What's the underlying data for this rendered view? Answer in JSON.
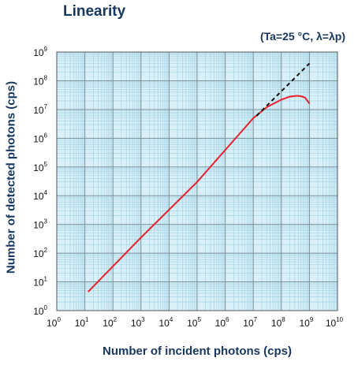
{
  "title": "Linearity",
  "subtitle": "(Ta=25 °C, λ=λp)",
  "chart_data": {
    "type": "line",
    "xlabel": "Number of incident photons (cps)",
    "ylabel": "Number of detected photons (cps)",
    "xscale": "log",
    "yscale": "log",
    "xlim": [
      1,
      10000000000
    ],
    "ylim": [
      1,
      1000000000
    ],
    "x_tick_exponents": [
      0,
      1,
      2,
      3,
      4,
      5,
      6,
      7,
      8,
      9,
      10
    ],
    "y_tick_exponents": [
      0,
      1,
      2,
      3,
      4,
      5,
      6,
      7,
      8,
      9
    ],
    "grid": true,
    "grid_color": "#9fd0e3",
    "plot_background": "#d9f0f8",
    "series": [
      {
        "style": "solid",
        "color": "#e8202a",
        "x": [
          13,
          1000,
          100000,
          10000000,
          30000000,
          100000000,
          200000000,
          350000000,
          500000000,
          700000000,
          1000000000
        ],
        "y": [
          4.5,
          350,
          30000,
          5000000,
          12000000,
          22000000,
          28000000,
          30000000,
          29000000,
          26000000,
          16000000
        ]
      },
      {
        "style": "dashed",
        "color": "#111111",
        "x": [
          13000000,
          1000000000
        ],
        "y": [
          6000000,
          400000000
        ]
      }
    ]
  }
}
